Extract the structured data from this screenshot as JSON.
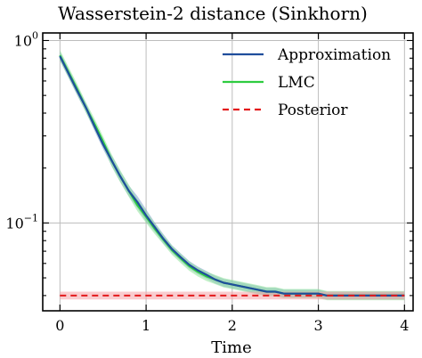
{
  "chart_data": {
    "type": "line",
    "title": "Wasserstein-2 distance (Sinkhorn)",
    "xlabel": "Time",
    "ylabel": "",
    "yscale": "log",
    "xlim": [
      -0.2,
      4.1
    ],
    "ylim": [
      0.033,
      1.1
    ],
    "xticks": [
      0,
      1,
      2,
      3,
      4
    ],
    "xtick_labels": [
      "0",
      "1",
      "2",
      "3",
      "4"
    ],
    "yticks": [
      1.0,
      0.1
    ],
    "ytick_labels": [
      "10^0",
      "10^-1"
    ],
    "grid": true,
    "legend_position": "top-right",
    "x": [
      0,
      0.1,
      0.2,
      0.3,
      0.4,
      0.5,
      0.6,
      0.7,
      0.8,
      0.9,
      1.0,
      1.1,
      1.2,
      1.3,
      1.4,
      1.5,
      1.6,
      1.7,
      1.8,
      1.9,
      2.0,
      2.1,
      2.2,
      2.3,
      2.4,
      2.5,
      2.6,
      2.7,
      2.8,
      2.9,
      3.0,
      3.1,
      3.2,
      3.3,
      3.4,
      3.5,
      3.6,
      3.7,
      3.8,
      3.9,
      4.0
    ],
    "series": [
      {
        "name": "Approximation",
        "color": "#1f4e9c",
        "band_color": "#7f9fd0",
        "style": "solid",
        "values": [
          0.82,
          0.66,
          0.53,
          0.43,
          0.34,
          0.27,
          0.22,
          0.18,
          0.15,
          0.13,
          0.11,
          0.095,
          0.082,
          0.072,
          0.065,
          0.059,
          0.055,
          0.052,
          0.049,
          0.047,
          0.046,
          0.045,
          0.044,
          0.043,
          0.042,
          0.042,
          0.041,
          0.041,
          0.041,
          0.041,
          0.041,
          0.04,
          0.04,
          0.04,
          0.04,
          0.04,
          0.04,
          0.04,
          0.04,
          0.04,
          0.04
        ],
        "band": [
          0.06,
          0.06,
          0.06,
          0.06,
          0.06,
          0.06,
          0.07,
          0.07,
          0.07,
          0.08,
          0.08,
          0.06,
          0.06,
          0.05,
          0.05,
          0.05,
          0.05,
          0.05,
          0.05,
          0.05,
          0.05,
          0.05,
          0.05,
          0.05,
          0.05,
          0.05,
          0.05,
          0.05,
          0.05,
          0.05,
          0.05,
          0.05,
          0.05,
          0.05,
          0.05,
          0.05,
          0.05,
          0.05,
          0.05,
          0.05,
          0.05
        ]
      },
      {
        "name": "LMC",
        "color": "#2ecc40",
        "band_color": "#8fe39a",
        "style": "solid",
        "values": [
          0.83,
          0.67,
          0.54,
          0.43,
          0.35,
          0.28,
          0.22,
          0.18,
          0.15,
          0.125,
          0.108,
          0.093,
          0.081,
          0.071,
          0.064,
          0.058,
          0.054,
          0.051,
          0.049,
          0.047,
          0.046,
          0.045,
          0.044,
          0.043,
          0.042,
          0.042,
          0.041,
          0.041,
          0.041,
          0.041,
          0.041,
          0.04,
          0.04,
          0.04,
          0.04,
          0.04,
          0.04,
          0.04,
          0.04,
          0.04,
          0.04
        ],
        "band": [
          0.07,
          0.07,
          0.07,
          0.07,
          0.07,
          0.07,
          0.08,
          0.08,
          0.08,
          0.08,
          0.08,
          0.07,
          0.06,
          0.06,
          0.06,
          0.06,
          0.06,
          0.06,
          0.06,
          0.06,
          0.06,
          0.06,
          0.06,
          0.06,
          0.06,
          0.06,
          0.06,
          0.06,
          0.06,
          0.06,
          0.06,
          0.06,
          0.06,
          0.06,
          0.06,
          0.06,
          0.06,
          0.06,
          0.06,
          0.06,
          0.06
        ]
      },
      {
        "name": "Posterior",
        "color": "#e31a1c",
        "band_color": "#f4a3a8",
        "style": "dashed",
        "values": [
          0.04,
          0.04,
          0.04,
          0.04,
          0.04,
          0.04,
          0.04,
          0.04,
          0.04,
          0.04,
          0.04,
          0.04,
          0.04,
          0.04,
          0.04,
          0.04,
          0.04,
          0.04,
          0.04,
          0.04,
          0.04,
          0.04,
          0.04,
          0.04,
          0.04,
          0.04,
          0.04,
          0.04,
          0.04,
          0.04,
          0.04,
          0.04,
          0.04,
          0.04,
          0.04,
          0.04,
          0.04,
          0.04,
          0.04,
          0.04,
          0.04
        ],
        "band": [
          0.05,
          0.05,
          0.05,
          0.05,
          0.05,
          0.05,
          0.05,
          0.05,
          0.05,
          0.05,
          0.05,
          0.05,
          0.05,
          0.05,
          0.05,
          0.05,
          0.05,
          0.05,
          0.05,
          0.05,
          0.05,
          0.05,
          0.05,
          0.05,
          0.05,
          0.05,
          0.05,
          0.05,
          0.05,
          0.05,
          0.05,
          0.05,
          0.05,
          0.05,
          0.05,
          0.05,
          0.05,
          0.05,
          0.05,
          0.05,
          0.05
        ]
      }
    ]
  }
}
